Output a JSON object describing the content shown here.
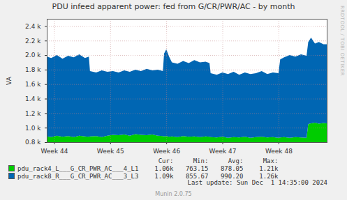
{
  "chart_data": {
    "type": "area",
    "title": "PDU infeed apparent power: fed from G/CR/PWR/AC - by month",
    "y_label": "VA",
    "stacked": true,
    "grid": true,
    "x": [
      43.87,
      43.95,
      44.05,
      44.15,
      44.25,
      44.35,
      44.45,
      44.55,
      44.62,
      44.64,
      44.75,
      44.85,
      44.95,
      45.05,
      45.15,
      45.25,
      45.35,
      45.45,
      45.55,
      45.65,
      45.75,
      45.85,
      45.94,
      45.96,
      46.0,
      46.05,
      46.1,
      46.2,
      46.3,
      46.4,
      46.5,
      46.6,
      46.7,
      46.77,
      46.79,
      46.9,
      47.0,
      47.1,
      47.2,
      47.3,
      47.4,
      47.5,
      47.6,
      47.7,
      47.8,
      47.9,
      48.0,
      48.03,
      48.1,
      48.2,
      48.3,
      48.4,
      48.5,
      48.53,
      48.58,
      48.65,
      48.72,
      48.8,
      48.86
    ],
    "xlim": [
      43.87,
      48.86
    ],
    "xticks": [
      {
        "value": 44,
        "label": "Week 44"
      },
      {
        "value": 45,
        "label": "Week 45"
      },
      {
        "value": 46,
        "label": "Week 46"
      },
      {
        "value": 47,
        "label": "Week 47"
      },
      {
        "value": 48,
        "label": "Week 48"
      }
    ],
    "ylim": [
      800,
      2500
    ],
    "yticks": [
      {
        "value": 800,
        "label": "0.8 k"
      },
      {
        "value": 1000,
        "label": "1.0 k"
      },
      {
        "value": 1200,
        "label": "1.2 k"
      },
      {
        "value": 1400,
        "label": "1.4 k"
      },
      {
        "value": 1600,
        "label": "1.6 k"
      },
      {
        "value": 1800,
        "label": "1.8 k"
      },
      {
        "value": 2000,
        "label": "2.0 k"
      },
      {
        "value": 2200,
        "label": "2.2 k"
      },
      {
        "value": 2400,
        "label": "2.4 k"
      }
    ],
    "series": [
      {
        "name": "pdu_rack4_L___G_CR_PWR_AC___4_L1",
        "color": "#00cc00",
        "values": [
          880,
          870,
          890,
          875,
          885,
          870,
          890,
          880,
          875,
          880,
          885,
          870,
          890,
          900,
          895,
          905,
          890,
          910,
          900,
          895,
          905,
          890,
          885,
          880,
          885,
          875,
          880,
          870,
          885,
          875,
          880,
          870,
          880,
          875,
          870,
          865,
          875,
          860,
          870,
          865,
          875,
          860,
          870,
          875,
          865,
          870,
          860,
          865,
          870,
          860,
          870,
          865,
          860,
          1050,
          1060,
          1070,
          1055,
          1065,
          1060
        ],
        "stats": [
          {
            "value": 1060,
            "label": "1.06k"
          },
          {
            "value": 763.15,
            "label": "763.15"
          },
          {
            "value": 878.05,
            "label": "878.05"
          },
          {
            "value": 1210,
            "label": "1.21k"
          }
        ]
      },
      {
        "name": "pdu_rack8_R___G_CR_PWR_AC___3_L3",
        "color": "#0066b3",
        "values": [
          1100,
          1090,
          1110,
          1075,
          1105,
          1100,
          1120,
          1080,
          1105,
          900,
          875,
          920,
          880,
          880,
          865,
          885,
          880,
          890,
          880,
          915,
          885,
          910,
          895,
          1140,
          1195,
          1105,
          1020,
          1010,
          1035,
          1015,
          1050,
          1030,
          1030,
          1015,
          880,
          865,
          885,
          880,
          900,
          865,
          885,
          880,
          880,
          905,
          875,
          890,
          890,
          1075,
          1100,
          1140,
          1110,
          1145,
          1130,
          1130,
          1180,
          1090,
          1125,
          1085,
          1090
        ],
        "stats": [
          {
            "value": 1090,
            "label": "1.09k"
          },
          {
            "value": 855.67,
            "label": "855.67"
          },
          {
            "value": 990.2,
            "label": "990.20"
          },
          {
            "value": 1260,
            "label": "1.26k"
          }
        ]
      }
    ],
    "stats_labels": [
      "Cur:",
      "Min:",
      "Avg:",
      "Max:"
    ],
    "last_update": "Last update: Sun Dec  1 14:35:00 2024",
    "credit": "Munin 2.0.75",
    "watermark": "RRDTOOL / TOBI OETIKER"
  }
}
